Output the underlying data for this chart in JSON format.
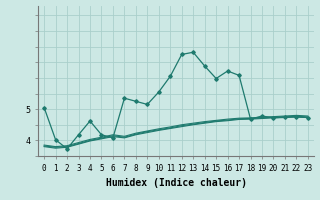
{
  "bg_color": "#cce8e4",
  "line_color": "#1e7a6e",
  "grid_color": "#aacfcb",
  "xlabel": "Humidex (Indice chaleur)",
  "xlabel_fontsize": 7,
  "tick_fontsize": 5.5,
  "xlim": [
    -0.5,
    23.5
  ],
  "ylim": [
    3.55,
    8.3
  ],
  "x": [
    0,
    1,
    2,
    3,
    4,
    5,
    6,
    7,
    8,
    9,
    10,
    11,
    12,
    13,
    14,
    15,
    16,
    17,
    18,
    19,
    20,
    21,
    22,
    23
  ],
  "series1": [
    5.05,
    4.02,
    3.73,
    4.18,
    4.62,
    4.18,
    4.08,
    5.35,
    5.25,
    5.15,
    5.55,
    6.05,
    6.75,
    6.82,
    6.38,
    5.98,
    6.22,
    6.08,
    4.68,
    4.78,
    4.72,
    4.75,
    4.75,
    4.73
  ],
  "series2": [
    3.8,
    3.75,
    3.78,
    3.88,
    3.98,
    4.05,
    4.12,
    4.08,
    4.18,
    4.25,
    4.32,
    4.38,
    4.44,
    4.5,
    4.55,
    4.6,
    4.63,
    4.67,
    4.68,
    4.7,
    4.72,
    4.73,
    4.75,
    4.73
  ],
  "series3": [
    3.82,
    3.78,
    3.8,
    3.9,
    4.0,
    4.07,
    4.15,
    4.1,
    4.2,
    4.28,
    4.34,
    4.4,
    4.47,
    4.52,
    4.57,
    4.62,
    4.65,
    4.69,
    4.7,
    4.72,
    4.74,
    4.75,
    4.77,
    4.75
  ],
  "series4": [
    3.85,
    3.8,
    3.83,
    3.93,
    4.03,
    4.1,
    4.18,
    4.13,
    4.23,
    4.3,
    4.37,
    4.43,
    4.5,
    4.55,
    4.6,
    4.64,
    4.68,
    4.71,
    4.72,
    4.74,
    4.76,
    4.78,
    4.8,
    4.78
  ],
  "yticks": [
    4,
    5
  ],
  "ytick_labels": [
    "4",
    "5"
  ]
}
